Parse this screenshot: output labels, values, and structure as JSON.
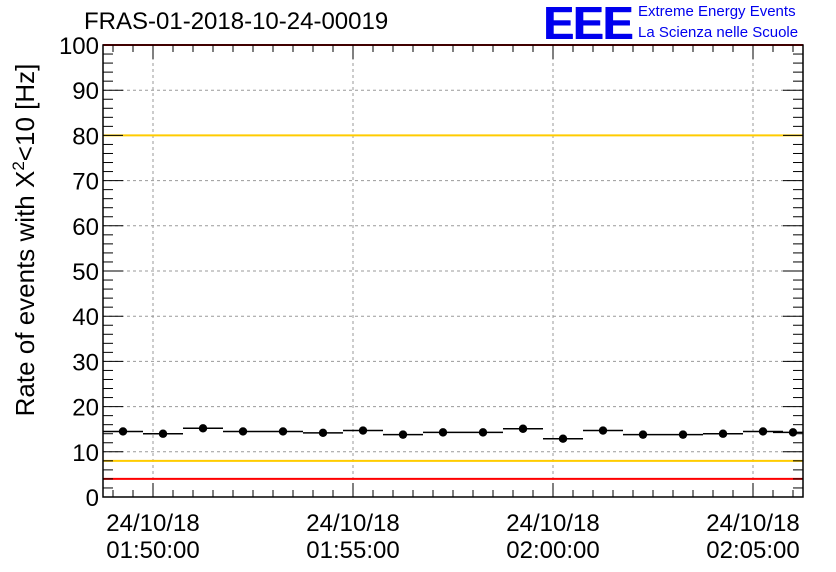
{
  "title": "FRAS-01-2018-10-24-00019",
  "logo": {
    "mark": "EEE",
    "line1": "Extreme Energy Events",
    "line2": "La Scienza nelle Scuole"
  },
  "chart_data": {
    "type": "scatter",
    "title": "FRAS-01-2018-10-24-00019",
    "ylabel": "Rate of events with X²<10 [Hz]",
    "xlabel": "",
    "ylim": [
      0,
      100
    ],
    "xlim": [
      "01:48:45",
      "02:06:15"
    ],
    "yticks": [
      0,
      10,
      20,
      30,
      40,
      50,
      60,
      70,
      80,
      90,
      100
    ],
    "xticks": [
      {
        "date": "24/10/18",
        "time": "01:50:00"
      },
      {
        "date": "24/10/18",
        "time": "01:55:00"
      },
      {
        "date": "24/10/18",
        "time": "02:00:00"
      },
      {
        "date": "24/10/18",
        "time": "02:05:00"
      }
    ],
    "grid": true,
    "series": [
      {
        "x": [
          "01:49:15",
          "01:50:15",
          "01:51:15",
          "01:52:15",
          "01:53:15",
          "01:54:15",
          "01:55:15",
          "01:56:15",
          "01:57:15",
          "01:58:15",
          "01:59:15",
          "02:00:15",
          "02:01:15",
          "02:02:15",
          "02:03:15",
          "02:04:15",
          "02:05:15",
          "02:06:00"
        ],
        "y": [
          14.5,
          14.0,
          15.2,
          14.5,
          14.5,
          14.2,
          14.7,
          13.8,
          14.3,
          14.3,
          15.1,
          12.9,
          14.7,
          13.8,
          13.8,
          14.0,
          14.5,
          14.3
        ],
        "x_half_width_min": 0.5,
        "color": "#000000"
      }
    ],
    "reference_lines": [
      {
        "y": 80,
        "color": "#ffcc00"
      },
      {
        "y": 8,
        "color": "#ffcc00"
      },
      {
        "y": 100,
        "color": "#ff0000"
      },
      {
        "y": 4,
        "color": "#ff0000"
      }
    ]
  }
}
